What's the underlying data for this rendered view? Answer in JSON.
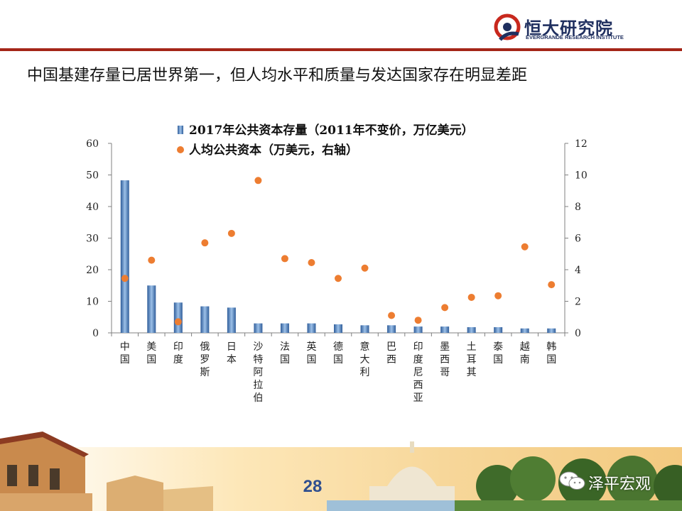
{
  "brand": {
    "name": "恒大研究院",
    "subtitle": "EVERGRANDE RESEARCH INSTITUTE",
    "color": "#1f2f5f",
    "accent": "#c8281d"
  },
  "slide": {
    "title": "中国基建存量已居世界第一，但人均水平和质量与发达国家存在明显差距",
    "page_number": "28",
    "rule_color": "#a42618"
  },
  "watermark": {
    "text": "泽平宏观",
    "icon": "wechat-icon"
  },
  "chart_data": {
    "type": "bar",
    "categories": [
      "中国",
      "美国",
      "印度",
      "俄罗斯",
      "日本",
      "沙特阿拉伯",
      "法国",
      "英国",
      "德国",
      "意大利",
      "巴西",
      "印度尼西亚",
      "墨西哥",
      "土耳其",
      "泰国",
      "越南",
      "韩国"
    ],
    "series": [
      {
        "name": "2017年公共资本存量（2011年不变价，万亿美元）",
        "type": "bar",
        "axis": "left",
        "color": "#4f7fbf",
        "values": [
          48.3,
          15.0,
          9.6,
          8.4,
          8.0,
          3.0,
          3.0,
          3.0,
          2.7,
          2.4,
          2.4,
          2.0,
          2.0,
          1.8,
          1.8,
          1.4,
          1.4
        ]
      },
      {
        "name": "人均公共资本（万美元，右轴）",
        "type": "scatter",
        "axis": "right",
        "color": "#ed7d31",
        "values": [
          3.45,
          4.6,
          0.7,
          5.7,
          6.3,
          9.65,
          4.7,
          4.45,
          3.45,
          4.1,
          1.1,
          0.8,
          1.6,
          2.25,
          2.35,
          5.45,
          3.05
        ]
      }
    ],
    "y_left": {
      "ticks": [
        "0",
        "10",
        "20",
        "30",
        "40",
        "50",
        "60"
      ],
      "ylim": [
        0,
        60
      ]
    },
    "y_right": {
      "ticks": [
        "0",
        "2",
        "4",
        "6",
        "8",
        "10",
        "12"
      ],
      "ylim": [
        0,
        12
      ]
    },
    "legend": "top-center",
    "grid": false
  }
}
